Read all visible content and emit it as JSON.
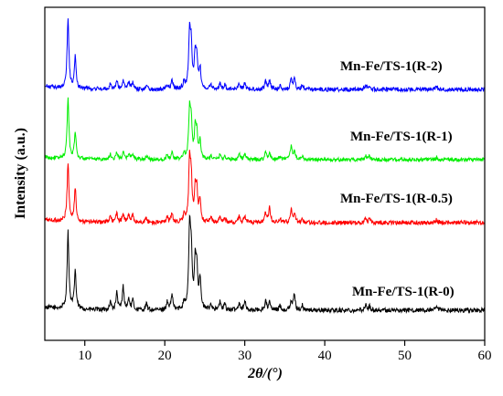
{
  "chart_data": {
    "type": "line",
    "title": "",
    "xlabel": "2θ/(°)",
    "ylabel": "Intensity (a.u.)",
    "xlim": [
      5,
      60
    ],
    "xticks": [
      10,
      20,
      30,
      40,
      50,
      60
    ],
    "yticks": [],
    "grid": false,
    "legend": "inline labels to the right of each trace",
    "peaks_2theta": [
      7.9,
      8.8,
      13.2,
      14.0,
      14.8,
      15.5,
      16.0,
      17.7,
      20.3,
      20.9,
      22.4,
      23.1,
      23.3,
      23.8,
      24.0,
      24.4,
      25.8,
      26.9,
      27.5,
      29.3,
      30.0,
      32.6,
      33.1,
      34.4,
      35.8,
      36.2,
      37.2,
      45.1,
      45.6,
      54.0
    ],
    "series": [
      {
        "name": "Mn-Fe/TS-1(R-0)",
        "color": "#000000",
        "peak_heights": [
          1.0,
          0.5,
          0.1,
          0.22,
          0.3,
          0.14,
          0.12,
          0.08,
          0.1,
          0.2,
          0.1,
          1.0,
          0.7,
          0.55,
          0.5,
          0.4,
          0.08,
          0.1,
          0.08,
          0.1,
          0.12,
          0.12,
          0.1,
          0.06,
          0.12,
          0.2,
          0.06,
          0.07,
          0.05,
          0.04
        ]
      },
      {
        "name": "Mn-Fe/TS-1(R-0.5)",
        "color": "#ff0000",
        "peak_heights": [
          0.8,
          0.45,
          0.08,
          0.12,
          0.12,
          0.1,
          0.1,
          0.06,
          0.08,
          0.12,
          0.1,
          0.8,
          0.55,
          0.4,
          0.38,
          0.3,
          0.06,
          0.08,
          0.06,
          0.08,
          0.1,
          0.12,
          0.2,
          0.05,
          0.18,
          0.12,
          0.05,
          0.06,
          0.05,
          0.04
        ]
      },
      {
        "name": "Mn-Fe/TS-1(R-1)",
        "color": "#00ee00",
        "peak_heights": [
          1.0,
          0.45,
          0.08,
          0.12,
          0.12,
          0.1,
          0.1,
          0.06,
          0.08,
          0.12,
          0.1,
          0.8,
          0.55,
          0.45,
          0.4,
          0.3,
          0.06,
          0.08,
          0.06,
          0.1,
          0.1,
          0.12,
          0.12,
          0.05,
          0.22,
          0.15,
          0.05,
          0.06,
          0.08,
          0.04
        ]
      },
      {
        "name": "Mn-Fe/TS-1(R-2)",
        "color": "#0000ff",
        "peak_heights": [
          1.0,
          0.45,
          0.08,
          0.12,
          0.12,
          0.1,
          0.1,
          0.06,
          0.08,
          0.12,
          0.1,
          0.8,
          0.55,
          0.45,
          0.4,
          0.3,
          0.06,
          0.08,
          0.06,
          0.1,
          0.1,
          0.12,
          0.12,
          0.05,
          0.15,
          0.15,
          0.05,
          0.06,
          0.05,
          0.04
        ]
      }
    ]
  }
}
